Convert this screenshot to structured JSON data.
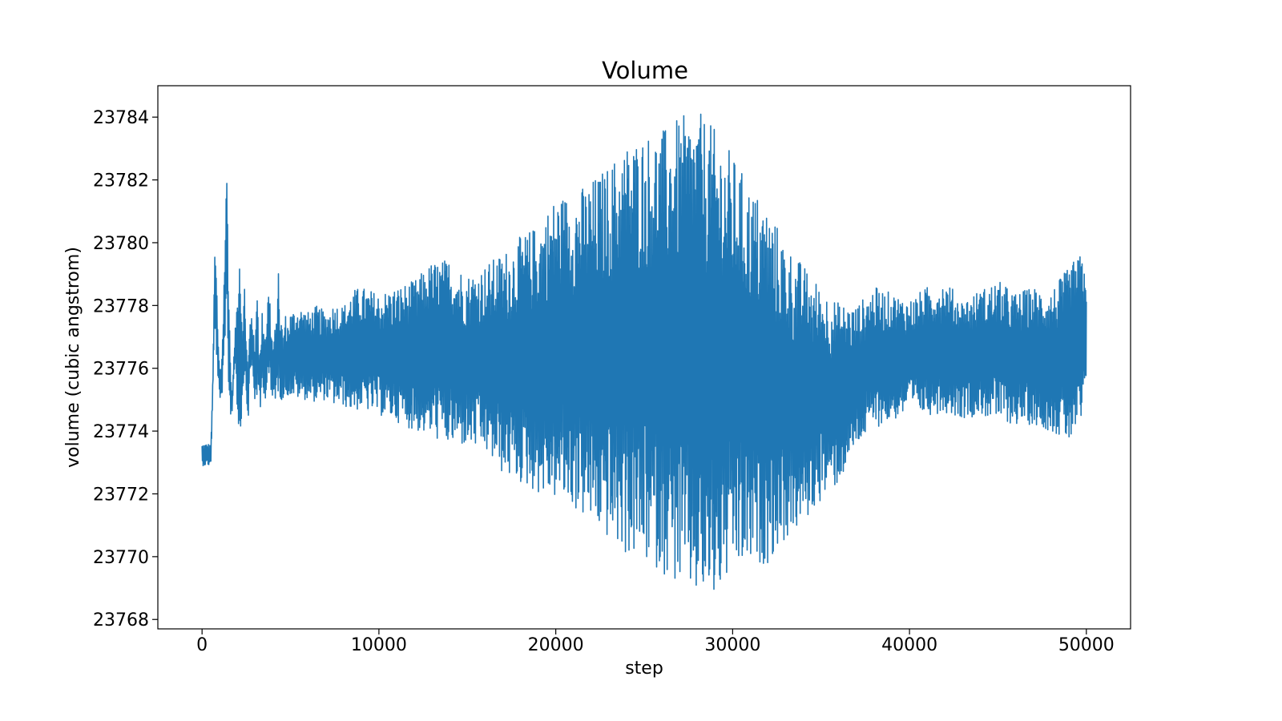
{
  "chart_data": {
    "type": "line",
    "title": "Volume",
    "xlabel": "step",
    "ylabel": "volume (cubic angstrom)",
    "xlim": [
      -2500,
      52500
    ],
    "ylim": [
      23767.7,
      23785.0
    ],
    "xticks": [
      0,
      10000,
      20000,
      30000,
      40000,
      50000
    ],
    "xtick_labels": [
      "0",
      "10000",
      "20000",
      "30000",
      "40000",
      "50000"
    ],
    "yticks": [
      23768,
      23770,
      23772,
      23774,
      23776,
      23778,
      23780,
      23782,
      23784
    ],
    "ytick_labels": [
      "23768",
      "23770",
      "23772",
      "23774",
      "23776",
      "23778",
      "23780",
      "23782",
      "23784"
    ],
    "grid": false,
    "line_color": "#1f77b4",
    "series": [
      {
        "x": [
          0,
          100,
          200,
          300,
          400,
          500,
          600,
          700,
          800,
          900,
          1000,
          1100,
          1200,
          1300,
          1400,
          1500,
          1600,
          1700,
          1800,
          1900,
          2000,
          2100,
          2200,
          2300,
          2400,
          2500,
          2600,
          2700,
          2800,
          2900,
          3000,
          3100,
          3200,
          3300,
          3400,
          3500,
          3600,
          3700,
          3800,
          3900,
          4000,
          4100,
          4200,
          4300,
          4400,
          4500,
          4600,
          4700,
          4800,
          4900,
          5000,
          5500,
          6000,
          6500,
          7000,
          7500,
          8000,
          8500,
          9000,
          10000,
          11000,
          12000,
          13000,
          14000,
          15000,
          16000,
          17000,
          18000,
          19000,
          20000,
          21000,
          22000,
          23000,
          24000,
          25000,
          26000,
          27000,
          28000,
          28500,
          29000,
          29500,
          30000,
          31000,
          32000,
          33000,
          34000,
          35000,
          36000,
          37000,
          38000,
          39000,
          40000,
          41000,
          42000,
          43000,
          44000,
          45000,
          46000,
          47000,
          48000,
          49000,
          49500,
          50000
        ],
        "y_upper": [
          23773.6,
          23773.6,
          23773.6,
          23773.6,
          23773.6,
          23773.6,
          23775.5,
          23779.6,
          23779.4,
          23777.0,
          23776.0,
          23776.2,
          23778.0,
          23780.5,
          23782.4,
          23779.0,
          23776.5,
          23775.0,
          23776.4,
          23777.5,
          23778.5,
          23780.6,
          23779.0,
          23777.0,
          23778.9,
          23777.0,
          23776.0,
          23777.5,
          23778.0,
          23777.2,
          23776.5,
          23779.5,
          23777.0,
          23776.5,
          23777.8,
          23777.5,
          23777.0,
          23778.2,
          23778.8,
          23777.5,
          23776.8,
          23777.2,
          23777.5,
          23779.3,
          23778.0,
          23777.5,
          23777.0,
          23777.8,
          23777.4,
          23777.6,
          23777.8,
          23778.0,
          23777.8,
          23778.0,
          23777.8,
          23778.1,
          23778.0,
          23778.5,
          23778.6,
          23778.4,
          23778.6,
          23778.8,
          23779.4,
          23779.5,
          23779.0,
          23779.3,
          23779.7,
          23780.2,
          23780.6,
          23781.5,
          23781.6,
          23782.0,
          23782.5,
          23783.2,
          23783.5,
          23783.6,
          23784.0,
          23784.2,
          23784.0,
          23783.6,
          23783.3,
          23782.8,
          23781.8,
          23781.2,
          23780.0,
          23779.3,
          23778.6,
          23778.1,
          23778.0,
          23778.6,
          23778.4,
          23778.2,
          23778.6,
          23778.8,
          23778.2,
          23778.5,
          23778.8,
          23778.4,
          23778.6,
          23778.5,
          23779.2,
          23779.6,
          23779.6
        ],
        "y_lower": [
          23772.9,
          23772.9,
          23772.9,
          23772.9,
          23772.9,
          23772.9,
          23775.0,
          23777.0,
          23776.5,
          23775.7,
          23774.8,
          23775.0,
          23775.5,
          23776.0,
          23779.0,
          23775.0,
          23774.5,
          23774.6,
          23775.8,
          23776.3,
          23774.3,
          23774.0,
          23773.9,
          23775.0,
          23776.0,
          23775.0,
          23774.2,
          23775.5,
          23776.0,
          23775.5,
          23774.8,
          23775.0,
          23775.0,
          23774.6,
          23775.5,
          23775.2,
          23775.0,
          23775.7,
          23775.5,
          23774.9,
          23774.9,
          23775.0,
          23775.0,
          23775.2,
          23775.0,
          23775.0,
          23775.0,
          23775.2,
          23775.0,
          23775.2,
          23775.1,
          23775.0,
          23775.0,
          23774.9,
          23775.0,
          23774.8,
          23774.8,
          23774.6,
          23774.7,
          23774.5,
          23774.3,
          23774.0,
          23773.8,
          23773.5,
          23773.5,
          23773.3,
          23772.6,
          23772.3,
          23772.0,
          23771.8,
          23771.5,
          23771.0,
          23770.5,
          23770.0,
          23769.8,
          23769.5,
          23769.0,
          23768.6,
          23768.5,
          23768.5,
          23769.0,
          23769.4,
          23769.6,
          23769.8,
          23770.5,
          23771.0,
          23771.8,
          23772.3,
          23773.5,
          23774.1,
          23774.3,
          23774.6,
          23774.5,
          23774.6,
          23774.4,
          23774.5,
          23774.3,
          23774.2,
          23774.2,
          23774.0,
          23773.6,
          23773.8,
          23774.6
        ]
      }
    ]
  }
}
